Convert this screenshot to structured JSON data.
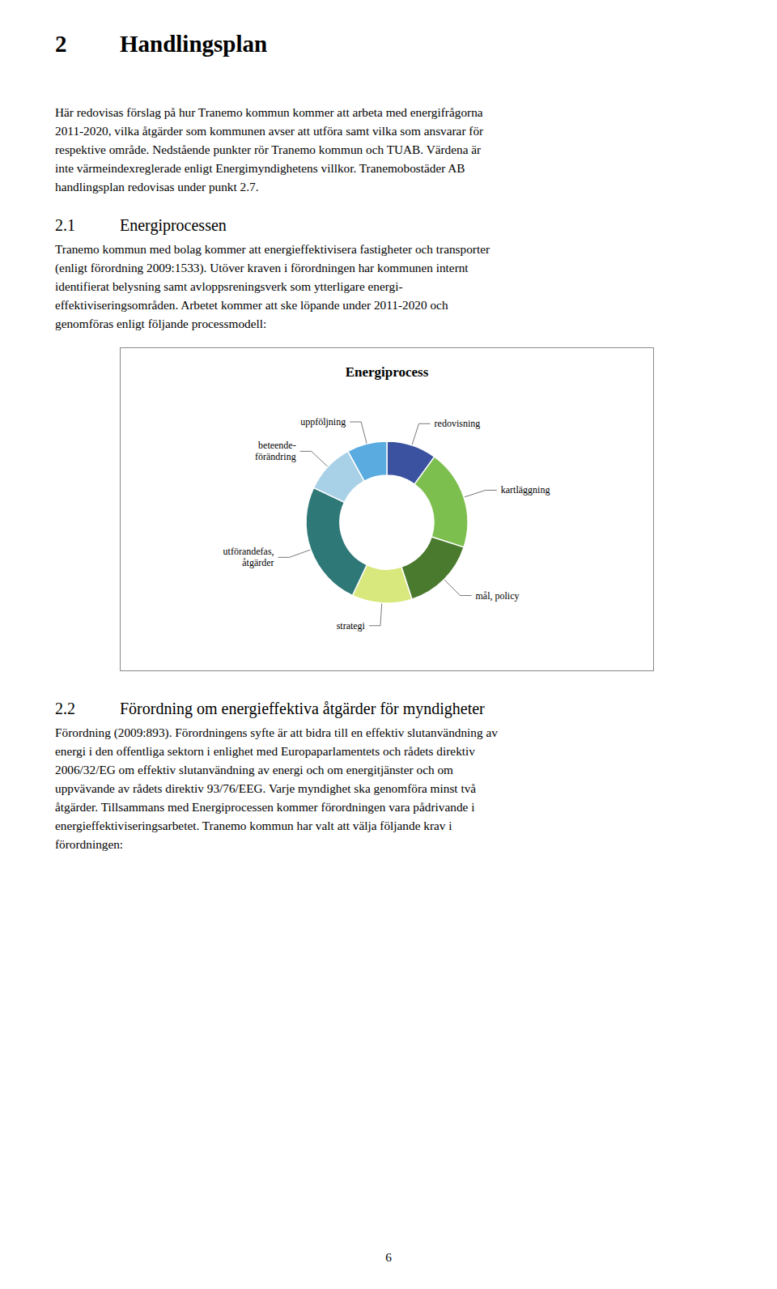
{
  "document": {
    "heading": {
      "number": "2",
      "title": "Handlingsplan"
    },
    "before_chart": [
      {
        "lines": [
          "Här redovisas förslag på hur Tranemo kommun kommer att arbeta med energifrågorna",
          "2011-2020, vilka åtgärder som kommunen avser att utföra samt vilka som ansvarar för",
          "respektive område. Nedstående punkter rör Tranemo kommun och TUAB. Värdena är",
          "inte värmeindexreglerade enligt Energimyndighetens villkor. Tranemobostäder AB",
          "handlingsplan redovisas under punkt 2.7."
        ]
      },
      {
        "section": {
          "number": "2.1",
          "title": "Energiprocessen"
        }
      },
      {
        "lines": [
          "Tranemo kommun med bolag kommer att energieffektivisera fastigheter och transporter",
          "(enligt förordning 2009:1533). Utöver kraven i förordningen har kommunen internt",
          "identifierat belysning samt avloppsreningsverk som ytterligare energi-",
          "effektiviseringsområden. Arbetet kommer att ske löpande under 2011-2020 och",
          "genomföras enligt följande processmodell:"
        ]
      }
    ],
    "after_chart": [
      {
        "section": {
          "number": "2.2",
          "title": "Förordning om energieffektiva åtgärder för myndigheter"
        }
      },
      {
        "lines": [
          "Förordning (2009:893). Förordningens syfte är att bidra till en effektiv slutanvändning av",
          "energi i den offentliga sektorn i enlighet med Europaparlamentets och rådets direktiv",
          "2006/32/EG om effektiv slutanvändning av energi och om energitjänster och om",
          "uppvävande av rådets direktiv 93/76/EEG. Varje myndighet ska genomföra minst två",
          "åtgärder. Tillsammans med Energiprocessen kommer förordningen vara pådrivande i",
          "energieffektiviseringsarbetet. Tranemo kommun har valt att välja följande krav i",
          "förordningen:"
        ]
      }
    ],
    "page_number": "6"
  },
  "chart_data": {
    "type": "pie",
    "title": "Energiprocess",
    "categories": [
      "redovisning",
      "kartläggning",
      "mål, policy",
      "strategi",
      "utförandefas,\nåtgärder",
      "beteende-\nförändring",
      "uppföljning"
    ],
    "values": [
      10,
      20,
      15,
      12,
      25,
      10,
      8
    ],
    "colors": [
      "#3a52a0",
      "#7dbf4e",
      "#4a7a2e",
      "#d8e87c",
      "#2e7878",
      "#a8d0e6",
      "#5aabe0"
    ]
  }
}
